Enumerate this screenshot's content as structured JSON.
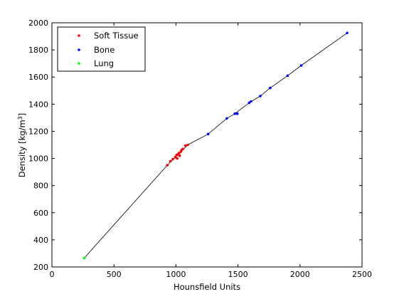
{
  "chart_data": {
    "type": "scatter",
    "title": "",
    "xlabel": "Hounsfield Units",
    "ylabel_main": "Density [kg/m",
    "ylabel_sup": "3",
    "ylabel_tail": "]",
    "xlim": [
      0,
      2500
    ],
    "ylim": [
      200,
      2000
    ],
    "xticks": [
      0,
      500,
      1000,
      1500,
      2000,
      2500
    ],
    "yticks": [
      200,
      400,
      600,
      800,
      1000,
      1200,
      1400,
      1600,
      1800,
      2000
    ],
    "grid": false,
    "legend_position": "top-left",
    "series": [
      {
        "name": "Soft Tissue",
        "color": "#ff0000",
        "marker": "dot",
        "points": [
          [
            930,
            950
          ],
          [
            955,
            980
          ],
          [
            975,
            995
          ],
          [
            995,
            1010
          ],
          [
            1005,
            1025
          ],
          [
            1010,
            1000
          ],
          [
            1015,
            1030
          ],
          [
            1025,
            1040
          ],
          [
            1030,
            1020
          ],
          [
            1040,
            1050
          ],
          [
            1045,
            1060
          ],
          [
            1055,
            1070
          ],
          [
            1075,
            1095
          ],
          [
            1095,
            1100
          ]
        ]
      },
      {
        "name": "Bone",
        "color": "#0000ff",
        "marker": "dot",
        "points": [
          [
            1260,
            1180
          ],
          [
            1410,
            1295
          ],
          [
            1475,
            1330
          ],
          [
            1495,
            1330
          ],
          [
            1590,
            1410
          ],
          [
            1605,
            1420
          ],
          [
            1680,
            1460
          ],
          [
            1760,
            1520
          ],
          [
            1900,
            1610
          ],
          [
            2010,
            1685
          ],
          [
            2380,
            1925
          ]
        ]
      },
      {
        "name": "Lung",
        "color": "#00ff00",
        "marker": "dot",
        "points": [
          [
            260,
            265
          ]
        ]
      }
    ],
    "fit_line": {
      "color": "#000000",
      "points": [
        [
          260,
          265
        ],
        [
          930,
          950
        ],
        [
          1095,
          1100
        ],
        [
          1260,
          1180
        ],
        [
          1410,
          1295
        ],
        [
          1475,
          1330
        ],
        [
          1590,
          1410
        ],
        [
          1680,
          1460
        ],
        [
          1760,
          1520
        ],
        [
          1900,
          1610
        ],
        [
          2010,
          1685
        ],
        [
          2380,
          1925
        ]
      ]
    }
  }
}
